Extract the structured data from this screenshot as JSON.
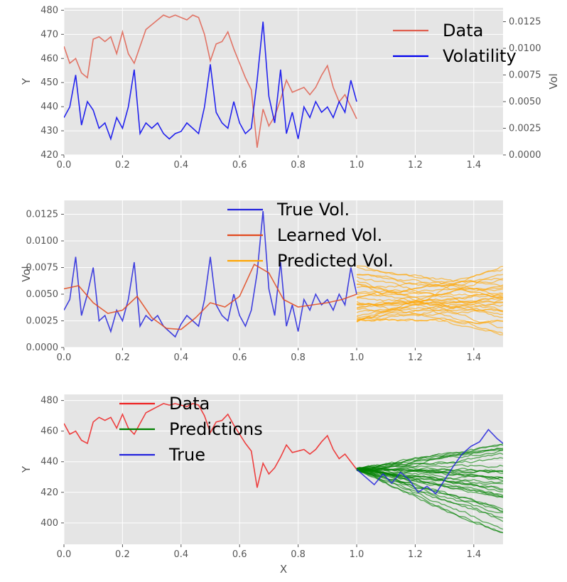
{
  "chart_data": [
    {
      "type": "line",
      "title": "",
      "xlabel": "",
      "ylabel": "Y",
      "y2label": "Vol",
      "xlim": [
        0,
        1.5
      ],
      "ylim": [
        420,
        481
      ],
      "y2lim": [
        0,
        0.0138
      ],
      "xticks": [
        "0.0",
        "0.2",
        "0.4",
        "0.6",
        "0.8",
        "1.0",
        "1.2",
        "1.4"
      ],
      "yticks": [
        "420",
        "430",
        "440",
        "450",
        "460",
        "470",
        "480"
      ],
      "y2ticks": [
        "0.0000",
        "0.0025",
        "0.0050",
        "0.0075",
        "0.0100",
        "0.0125"
      ],
      "grid": true,
      "legend_position": "top-right",
      "legend": [
        "Data",
        "Volatility"
      ],
      "series": [
        {
          "name": "Data",
          "axis": "left",
          "color": "#e06050",
          "x": [
            0.0,
            0.02,
            0.04,
            0.06,
            0.08,
            0.1,
            0.12,
            0.14,
            0.16,
            0.18,
            0.2,
            0.22,
            0.24,
            0.26,
            0.28,
            0.3,
            0.32,
            0.34,
            0.36,
            0.38,
            0.4,
            0.42,
            0.44,
            0.46,
            0.48,
            0.5,
            0.52,
            0.54,
            0.56,
            0.58,
            0.6,
            0.62,
            0.64,
            0.66,
            0.68,
            0.7,
            0.72,
            0.74,
            0.76,
            0.78,
            0.8,
            0.82,
            0.84,
            0.86,
            0.88,
            0.9,
            0.92,
            0.94,
            0.96,
            0.98,
            1.0
          ],
          "y": [
            465,
            458,
            460,
            454,
            452,
            468,
            469,
            467,
            469,
            462,
            471,
            462,
            458,
            465,
            472,
            474,
            476,
            478,
            477,
            478,
            477,
            476,
            478,
            477,
            470,
            459,
            466,
            467,
            471,
            464,
            458,
            452,
            447,
            423,
            439,
            432,
            436,
            443,
            451,
            446,
            447,
            448,
            445,
            448,
            453,
            457,
            448,
            442,
            445,
            440,
            435
          ]
        },
        {
          "name": "Volatility",
          "axis": "right",
          "color": "#0000ee",
          "x": [
            0.0,
            0.02,
            0.04,
            0.06,
            0.08,
            0.1,
            0.12,
            0.14,
            0.16,
            0.18,
            0.2,
            0.22,
            0.24,
            0.26,
            0.28,
            0.3,
            0.32,
            0.34,
            0.36,
            0.38,
            0.4,
            0.42,
            0.44,
            0.46,
            0.48,
            0.5,
            0.52,
            0.54,
            0.56,
            0.58,
            0.6,
            0.62,
            0.64,
            0.66,
            0.68,
            0.7,
            0.72,
            0.74,
            0.76,
            0.78,
            0.8,
            0.82,
            0.84,
            0.86,
            0.88,
            0.9,
            0.92,
            0.94,
            0.96,
            0.98,
            1.0
          ],
          "y": [
            0.0035,
            0.0045,
            0.0075,
            0.0028,
            0.005,
            0.0042,
            0.0025,
            0.003,
            0.0015,
            0.0035,
            0.0025,
            0.0045,
            0.008,
            0.002,
            0.003,
            0.0025,
            0.003,
            0.002,
            0.0015,
            0.002,
            0.0022,
            0.003,
            0.0025,
            0.002,
            0.0045,
            0.0085,
            0.004,
            0.003,
            0.0025,
            0.005,
            0.003,
            0.002,
            0.0025,
            0.007,
            0.0125,
            0.0055,
            0.003,
            0.008,
            0.002,
            0.004,
            0.0015,
            0.0045,
            0.0035,
            0.005,
            0.004,
            0.0045,
            0.0035,
            0.005,
            0.004,
            0.007,
            0.005
          ]
        }
      ]
    },
    {
      "type": "line",
      "title": "",
      "xlabel": "",
      "ylabel": "Vol",
      "xlim": [
        0,
        1.5
      ],
      "ylim": [
        0,
        0.0138
      ],
      "xticks": [
        "0.0",
        "0.2",
        "0.4",
        "0.6",
        "0.8",
        "1.0",
        "1.2",
        "1.4"
      ],
      "yticks": [
        "0.0000",
        "0.0025",
        "0.0050",
        "0.0075",
        "0.0100",
        "0.0125"
      ],
      "grid": true,
      "legend_position": "top-center",
      "legend": [
        "True Vol.",
        "Learned Vol.",
        "Predicted Vol."
      ],
      "series": [
        {
          "name": "True Vol.",
          "color": "#2222dd",
          "x": [
            0.0,
            0.02,
            0.04,
            0.06,
            0.08,
            0.1,
            0.12,
            0.14,
            0.16,
            0.18,
            0.2,
            0.22,
            0.24,
            0.26,
            0.28,
            0.3,
            0.32,
            0.34,
            0.36,
            0.38,
            0.4,
            0.42,
            0.44,
            0.46,
            0.48,
            0.5,
            0.52,
            0.54,
            0.56,
            0.58,
            0.6,
            0.62,
            0.64,
            0.66,
            0.68,
            0.7,
            0.72,
            0.74,
            0.76,
            0.78,
            0.8,
            0.82,
            0.84,
            0.86,
            0.88,
            0.9,
            0.92,
            0.94,
            0.96,
            0.98,
            1.0
          ],
          "y": [
            0.0035,
            0.0045,
            0.0085,
            0.003,
            0.005,
            0.0075,
            0.0025,
            0.003,
            0.0015,
            0.0035,
            0.0025,
            0.0045,
            0.008,
            0.002,
            0.003,
            0.0025,
            0.003,
            0.002,
            0.0015,
            0.001,
            0.0022,
            0.003,
            0.0025,
            0.002,
            0.0045,
            0.0085,
            0.004,
            0.003,
            0.0025,
            0.005,
            0.003,
            0.002,
            0.0035,
            0.007,
            0.0128,
            0.0055,
            0.003,
            0.008,
            0.002,
            0.004,
            0.0015,
            0.0045,
            0.0035,
            0.005,
            0.004,
            0.0045,
            0.0035,
            0.005,
            0.004,
            0.0075,
            0.005
          ]
        },
        {
          "name": "Learned Vol.",
          "color": "#e2491e",
          "x": [
            0.0,
            0.05,
            0.1,
            0.15,
            0.2,
            0.25,
            0.3,
            0.35,
            0.4,
            0.45,
            0.5,
            0.55,
            0.6,
            0.65,
            0.7,
            0.75,
            0.8,
            0.85,
            0.9,
            0.95,
            1.0
          ],
          "y": [
            0.0055,
            0.0058,
            0.0042,
            0.0032,
            0.0035,
            0.0048,
            0.0028,
            0.0018,
            0.0017,
            0.0028,
            0.0042,
            0.0038,
            0.0048,
            0.0078,
            0.007,
            0.0045,
            0.0038,
            0.004,
            0.0042,
            0.0045,
            0.005
          ]
        },
        {
          "name": "Predicted Vol.",
          "color": "#ffa500",
          "x_range": [
            1.0,
            1.5
          ],
          "path_count": 30,
          "start_range": [
            0.0022,
            0.0078
          ],
          "end_range": [
            0.0005,
            0.008
          ]
        }
      ]
    },
    {
      "type": "line",
      "title": "",
      "xlabel": "X",
      "ylabel": "Y",
      "xlim": [
        0,
        1.5
      ],
      "ylim": [
        386,
        484
      ],
      "xticks": [
        "0.0",
        "0.2",
        "0.4",
        "0.6",
        "0.8",
        "1.0",
        "1.2",
        "1.4"
      ],
      "yticks": [
        "400",
        "420",
        "440",
        "460",
        "480"
      ],
      "grid": true,
      "legend_position": "top-left",
      "legend": [
        "Data",
        "Predictions",
        "True"
      ],
      "series": [
        {
          "name": "Data",
          "color": "#ee2222",
          "x": [
            0.0,
            0.02,
            0.04,
            0.06,
            0.08,
            0.1,
            0.12,
            0.14,
            0.16,
            0.18,
            0.2,
            0.22,
            0.24,
            0.26,
            0.28,
            0.3,
            0.32,
            0.34,
            0.36,
            0.38,
            0.4,
            0.42,
            0.44,
            0.46,
            0.48,
            0.5,
            0.52,
            0.54,
            0.56,
            0.58,
            0.6,
            0.62,
            0.64,
            0.66,
            0.68,
            0.7,
            0.72,
            0.74,
            0.76,
            0.78,
            0.8,
            0.82,
            0.84,
            0.86,
            0.88,
            0.9,
            0.92,
            0.94,
            0.96,
            0.98,
            1.0
          ],
          "y": [
            465,
            458,
            460,
            454,
            452,
            466,
            469,
            467,
            469,
            462,
            471,
            462,
            458,
            465,
            472,
            474,
            476,
            478,
            477,
            478,
            477,
            476,
            478,
            477,
            470,
            459,
            466,
            467,
            471,
            464,
            458,
            452,
            447,
            423,
            439,
            432,
            436,
            443,
            451,
            446,
            447,
            448,
            445,
            448,
            453,
            457,
            448,
            442,
            445,
            440,
            435
          ]
        },
        {
          "name": "Predictions",
          "color": "#008000",
          "x_range": [
            1.0,
            1.5
          ],
          "path_count": 35,
          "start_value": 435,
          "end_range": [
            390,
            452
          ]
        },
        {
          "name": "True",
          "color": "#2222dd",
          "x": [
            1.0,
            1.03,
            1.06,
            1.09,
            1.12,
            1.15,
            1.18,
            1.21,
            1.24,
            1.27,
            1.3,
            1.33,
            1.36,
            1.39,
            1.42,
            1.45,
            1.48,
            1.5
          ],
          "y": [
            435,
            430,
            425,
            432,
            426,
            433,
            428,
            420,
            424,
            419,
            428,
            437,
            445,
            450,
            453,
            461,
            455,
            452
          ]
        }
      ]
    }
  ]
}
